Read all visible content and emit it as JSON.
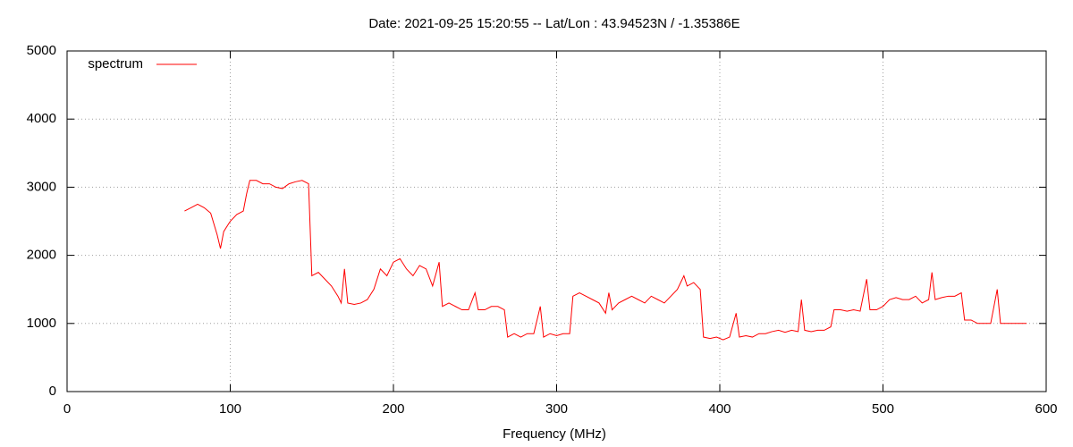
{
  "chart_data": {
    "type": "line",
    "title": "Date: 2021-09-25 15:20:55  --  Lat/Lon : 43.94523N / -1.35386E",
    "x_label": "Frequency (MHz)",
    "xlim": [
      0,
      600
    ],
    "xticks": [
      0,
      100,
      200,
      300,
      400,
      500,
      600
    ],
    "ylim": [
      0,
      5000
    ],
    "yticks": [
      0,
      1000,
      2000,
      3000,
      4000,
      5000
    ],
    "grid": true,
    "legend": "top-left",
    "x": [
      72,
      76,
      80,
      84,
      88,
      92,
      94,
      96,
      100,
      104,
      108,
      110,
      112,
      116,
      120,
      124,
      128,
      132,
      136,
      140,
      144,
      148,
      150,
      154,
      158,
      162,
      166,
      168,
      170,
      172,
      176,
      180,
      184,
      188,
      192,
      196,
      200,
      204,
      208,
      212,
      216,
      220,
      224,
      228,
      230,
      234,
      238,
      242,
      246,
      250,
      252,
      256,
      260,
      264,
      268,
      270,
      274,
      278,
      282,
      286,
      290,
      292,
      296,
      300,
      304,
      308,
      310,
      314,
      318,
      322,
      326,
      330,
      332,
      334,
      338,
      342,
      346,
      350,
      354,
      358,
      362,
      366,
      370,
      374,
      378,
      380,
      384,
      388,
      390,
      394,
      398,
      402,
      406,
      410,
      412,
      416,
      420,
      424,
      428,
      432,
      436,
      440,
      444,
      448,
      450,
      452,
      456,
      460,
      464,
      468,
      470,
      474,
      478,
      482,
      486,
      490,
      492,
      496,
      500,
      504,
      508,
      512,
      516,
      520,
      524,
      528,
      530,
      532,
      536,
      540,
      544,
      548,
      550,
      554,
      558,
      562,
      566,
      570,
      572,
      576,
      580,
      584,
      588
    ],
    "series": [
      {
        "name": "spectrum",
        "color": "#ff0000",
        "values": [
          2650,
          2700,
          2750,
          2700,
          2620,
          2300,
          2100,
          2350,
          2500,
          2600,
          2650,
          2900,
          3100,
          3100,
          3050,
          3050,
          3000,
          2980,
          3050,
          3080,
          3100,
          3050,
          1700,
          1750,
          1650,
          1550,
          1400,
          1300,
          1800,
          1300,
          1280,
          1300,
          1350,
          1500,
          1800,
          1700,
          1900,
          1950,
          1800,
          1700,
          1850,
          1800,
          1550,
          1900,
          1250,
          1300,
          1250,
          1200,
          1200,
          1450,
          1200,
          1200,
          1250,
          1250,
          1200,
          800,
          850,
          800,
          850,
          850,
          1250,
          800,
          850,
          820,
          850,
          850,
          1400,
          1450,
          1400,
          1350,
          1300,
          1150,
          1450,
          1200,
          1300,
          1350,
          1400,
          1350,
          1300,
          1400,
          1350,
          1300,
          1400,
          1500,
          1700,
          1550,
          1600,
          1500,
          800,
          780,
          800,
          760,
          800,
          1150,
          800,
          820,
          800,
          850,
          850,
          880,
          900,
          870,
          900,
          880,
          1350,
          900,
          880,
          900,
          900,
          950,
          1200,
          1200,
          1180,
          1200,
          1180,
          1650,
          1200,
          1200,
          1250,
          1350,
          1380,
          1350,
          1350,
          1400,
          1300,
          1350,
          1750,
          1350,
          1380,
          1400,
          1400,
          1450,
          1050,
          1050,
          1000,
          1000,
          1000,
          1500,
          1000,
          1000,
          1000,
          1000,
          1000
        ]
      }
    ]
  }
}
